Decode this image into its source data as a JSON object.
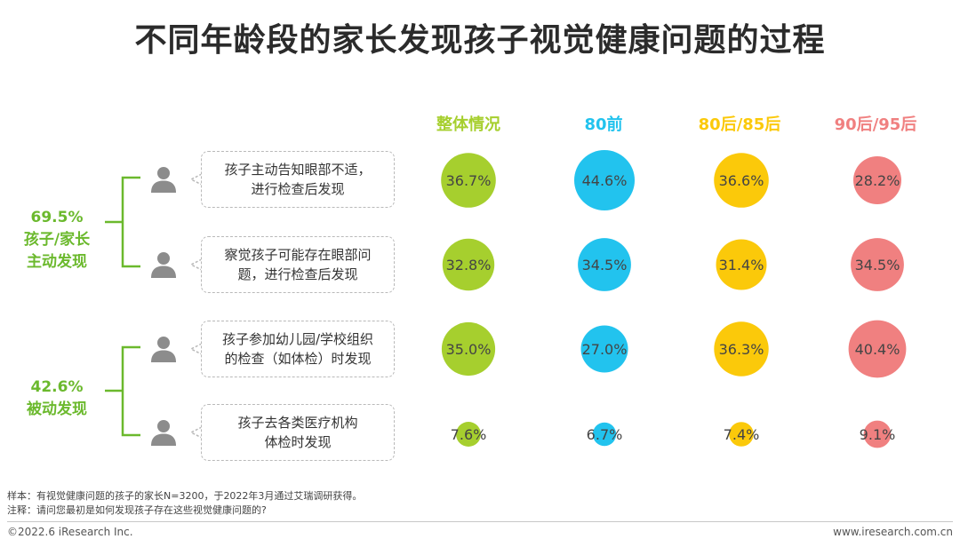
{
  "title": "不同年龄段的家长发现孩子视觉健康问题的过程",
  "groups": [
    {
      "percent": "69.5%",
      "line1": "孩子/家长",
      "line2": "主动发现"
    },
    {
      "percent": "42.6%",
      "line1": "被动发现",
      "line2": ""
    }
  ],
  "rows": [
    {
      "line1": "孩子主动告知眼部不适，",
      "line2": "进行检查后发现"
    },
    {
      "line1": "察觉孩子可能存在眼部问",
      "line2": "题，进行检查后发现"
    },
    {
      "line1": "孩子参加幼儿园/学校组织",
      "line2": "的检查（如体检）时发现"
    },
    {
      "line1": "孩子去各类医疗机构",
      "line2": "体检时发现"
    }
  ],
  "chart_data": {
    "type": "bubble",
    "columns": [
      {
        "name": "整体情况",
        "color": "#a6cf2e"
      },
      {
        "name": "80前",
        "color": "#22c3ee"
      },
      {
        "name": "80后/85后",
        "color": "#fbc90a"
      },
      {
        "name": "90后/95后",
        "color": "#f08080"
      }
    ],
    "values": [
      [
        36.7,
        44.6,
        36.6,
        28.2
      ],
      [
        32.8,
        34.5,
        31.4,
        34.5
      ],
      [
        35.0,
        27.0,
        36.3,
        40.4
      ],
      [
        7.6,
        6.7,
        7.4,
        9.1
      ]
    ],
    "labels": [
      [
        "36.7%",
        "44.6%",
        "36.6%",
        "28.2%"
      ],
      [
        "32.8%",
        "34.5%",
        "31.4%",
        "34.5%"
      ],
      [
        "35.0%",
        "27.0%",
        "36.3%",
        "40.4%"
      ],
      [
        "7.6%",
        "6.7%",
        "7.4%",
        "9.1%"
      ]
    ]
  },
  "notes": {
    "sample": "样本：有视觉健康问题的孩子的家长N=3200，于2022年3月通过艾瑞调研获得。",
    "annotation": "注释：请问您最初是如何发现孩子存在这些视觉健康问题的?"
  },
  "footer": {
    "left": "©2022.6 iResearch Inc.",
    "right": "www.iresearch.com.cn"
  },
  "colors": {
    "group_label": "#6bb92d",
    "person_icon": "#8c8c8c"
  }
}
